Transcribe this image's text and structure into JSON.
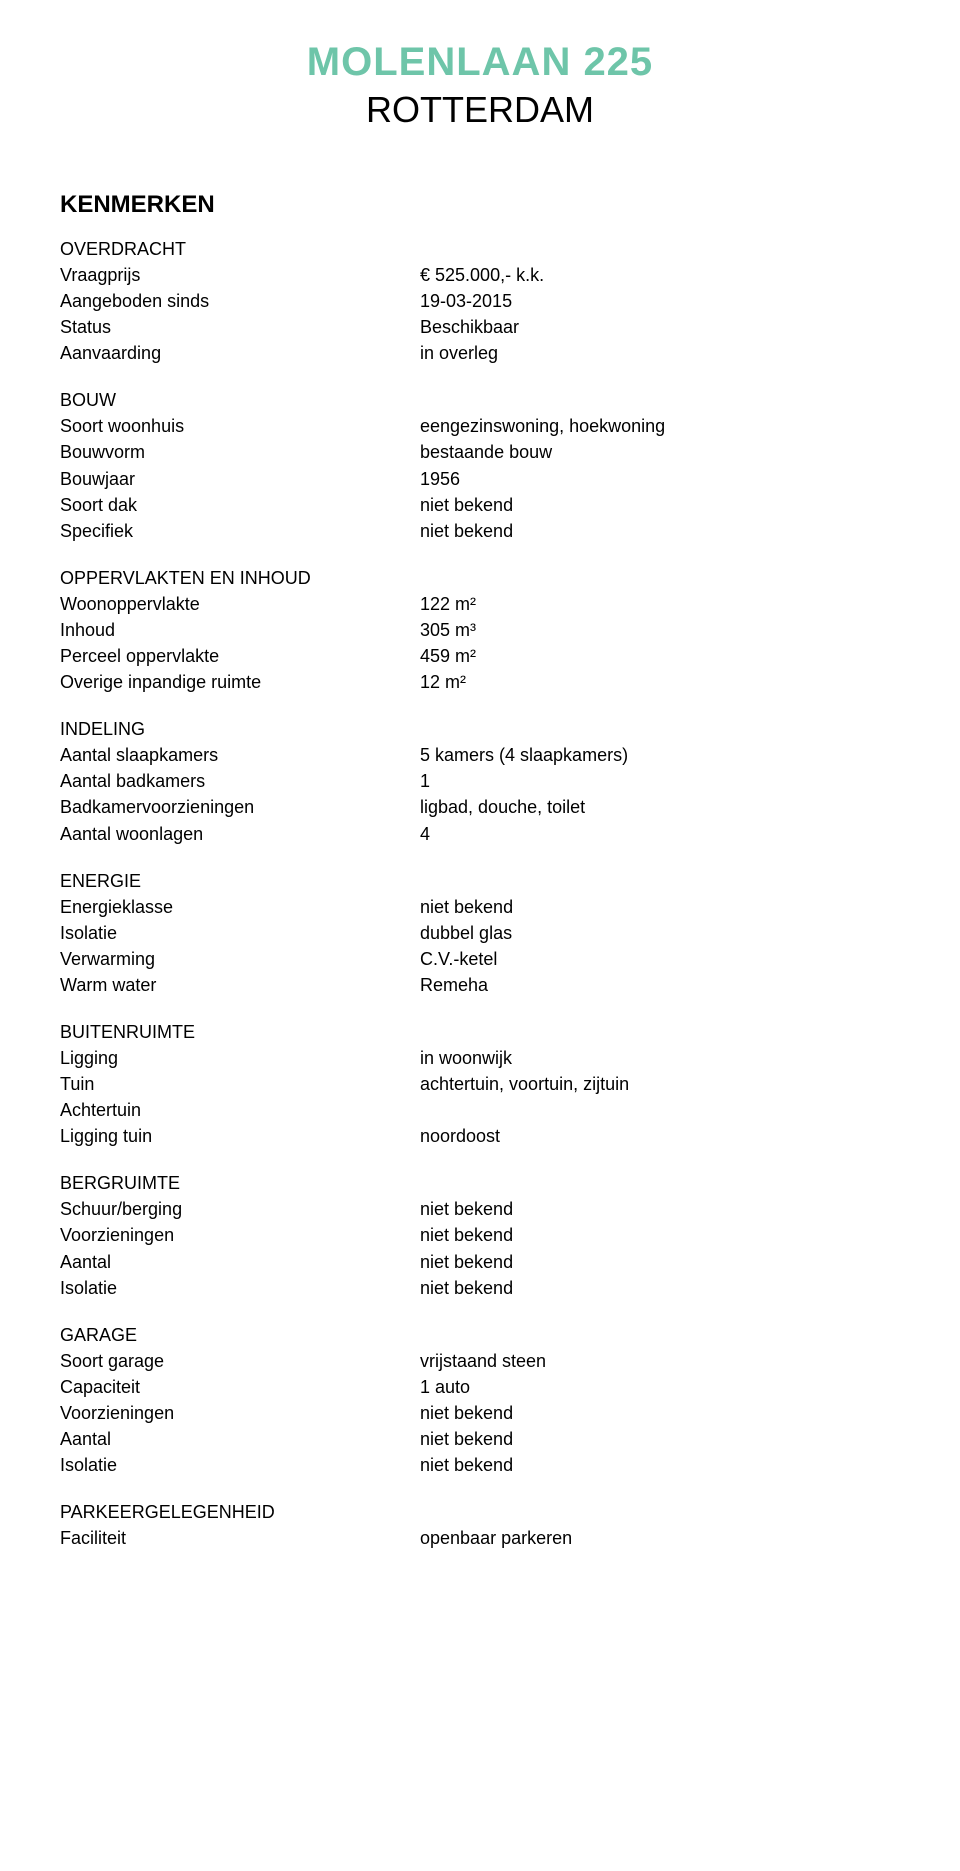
{
  "header": {
    "title": "MOLENLAAN 225",
    "subtitle": "ROTTERDAM"
  },
  "main_heading": "KENMERKEN",
  "sections": [
    {
      "heading": "OVERDRACHT",
      "rows": [
        {
          "label": "Vraagprijs",
          "value": "€ 525.000,- k.k."
        },
        {
          "label": "Aangeboden sinds",
          "value": "19-03-2015"
        },
        {
          "label": "Status",
          "value": "Beschikbaar"
        },
        {
          "label": "Aanvaarding",
          "value": "in overleg"
        }
      ]
    },
    {
      "heading": "BOUW",
      "rows": [
        {
          "label": "Soort woonhuis",
          "value": "eengezinswoning, hoekwoning"
        },
        {
          "label": "Bouwvorm",
          "value": "bestaande bouw"
        },
        {
          "label": "Bouwjaar",
          "value": "1956"
        },
        {
          "label": "Soort dak",
          "value": "niet bekend"
        },
        {
          "label": "Specifiek",
          "value": "niet bekend"
        }
      ]
    },
    {
      "heading": "OPPERVLAKTEN EN INHOUD",
      "rows": [
        {
          "label": "Woonoppervlakte",
          "value": "122 m²"
        },
        {
          "label": "Inhoud",
          "value": "305 m³"
        },
        {
          "label": "Perceel oppervlakte",
          "value": "459 m²"
        },
        {
          "label": "Overige inpandige ruimte",
          "value": "12 m²"
        }
      ]
    },
    {
      "heading": "INDELING",
      "rows": [
        {
          "label": "Aantal slaapkamers",
          "value": "5 kamers (4 slaapkamers)"
        },
        {
          "label": "Aantal badkamers",
          "value": "1"
        },
        {
          "label": "Badkamervoorzieningen",
          "value": "ligbad, douche, toilet"
        },
        {
          "label": "Aantal woonlagen",
          "value": "4"
        }
      ]
    },
    {
      "heading": "ENERGIE",
      "rows": [
        {
          "label": "Energieklasse",
          "value": "niet bekend"
        },
        {
          "label": "Isolatie",
          "value": "dubbel glas"
        },
        {
          "label": "Verwarming",
          "value": "C.V.-ketel"
        },
        {
          "label": "Warm water",
          "value": "Remeha"
        }
      ]
    },
    {
      "heading": "BUITENRUIMTE",
      "rows": [
        {
          "label": "Ligging",
          "value": "in woonwijk"
        },
        {
          "label": "Tuin",
          "value": "achtertuin, voortuin, zijtuin"
        },
        {
          "label": "Achtertuin",
          "value": ""
        },
        {
          "label": "Ligging tuin",
          "value": "noordoost"
        }
      ]
    },
    {
      "heading": "BERGRUIMTE",
      "rows": [
        {
          "label": "Schuur/berging",
          "value": "niet bekend"
        },
        {
          "label": "Voorzieningen",
          "value": "niet bekend"
        },
        {
          "label": "Aantal",
          "value": "niet bekend"
        },
        {
          "label": "Isolatie",
          "value": "niet bekend"
        }
      ]
    },
    {
      "heading": "GARAGE",
      "rows": [
        {
          "label": "Soort garage",
          "value": "vrijstaand steen"
        },
        {
          "label": "Capaciteit",
          "value": "1 auto"
        },
        {
          "label": "Voorzieningen",
          "value": "niet bekend"
        },
        {
          "label": "Aantal",
          "value": "niet bekend"
        },
        {
          "label": "Isolatie",
          "value": "niet bekend"
        }
      ]
    },
    {
      "heading": "PARKEERGELEGENHEID",
      "rows": [
        {
          "label": "Faciliteit",
          "value": "openbaar parkeren"
        }
      ]
    }
  ]
}
